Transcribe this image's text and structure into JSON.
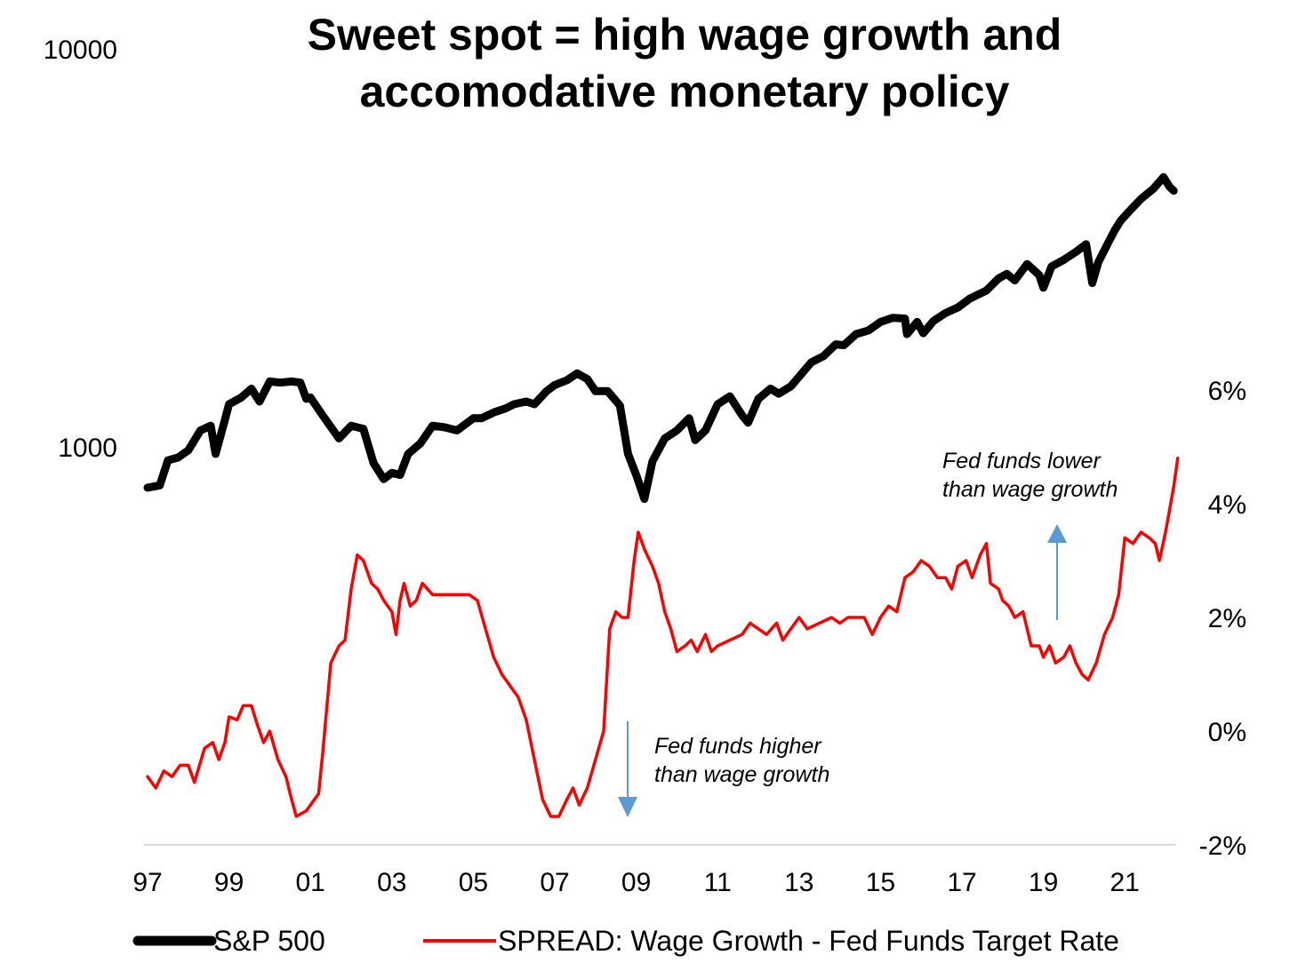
{
  "chart_data": {
    "type": "line",
    "title_lines": [
      "Sweet spot = high wage growth and",
      "accomodative monetary policy"
    ],
    "x_ticks": [
      "97",
      "99",
      "01",
      "03",
      "05",
      "07",
      "09",
      "11",
      "13",
      "15",
      "17",
      "19",
      "21"
    ],
    "xlim": [
      1997,
      2022.3
    ],
    "left_axis": {
      "scale": "log",
      "ticks": [
        "10000",
        "1000"
      ]
    },
    "right_axis": {
      "ticks": [
        "6%",
        "4%",
        "2%",
        "0%",
        "-2%"
      ],
      "ylim": [
        -2,
        6
      ]
    },
    "series": [
      {
        "name": "S&P 500",
        "axis": "left",
        "color": "#000000",
        "points": [
          [
            1997.0,
            790
          ],
          [
            1997.3,
            800
          ],
          [
            1997.5,
            925
          ],
          [
            1997.75,
            940
          ],
          [
            1998.0,
            980
          ],
          [
            1998.3,
            1100
          ],
          [
            1998.55,
            1130
          ],
          [
            1998.67,
            960
          ],
          [
            1998.9,
            1170
          ],
          [
            1999.0,
            1280
          ],
          [
            1999.3,
            1330
          ],
          [
            1999.55,
            1400
          ],
          [
            1999.75,
            1300
          ],
          [
            2000.0,
            1460
          ],
          [
            2000.25,
            1450
          ],
          [
            2000.55,
            1460
          ],
          [
            2000.75,
            1450
          ],
          [
            2000.9,
            1320
          ],
          [
            2001.0,
            1330
          ],
          [
            2001.3,
            1200
          ],
          [
            2001.7,
            1050
          ],
          [
            2002.0,
            1130
          ],
          [
            2002.3,
            1110
          ],
          [
            2002.55,
            910
          ],
          [
            2002.8,
            830
          ],
          [
            2003.0,
            860
          ],
          [
            2003.2,
            850
          ],
          [
            2003.4,
            960
          ],
          [
            2003.7,
            1020
          ],
          [
            2004.0,
            1130
          ],
          [
            2004.3,
            1120
          ],
          [
            2004.6,
            1100
          ],
          [
            2005.0,
            1180
          ],
          [
            2005.2,
            1180
          ],
          [
            2005.5,
            1220
          ],
          [
            2005.8,
            1250
          ],
          [
            2006.0,
            1280
          ],
          [
            2006.3,
            1300
          ],
          [
            2006.5,
            1280
          ],
          [
            2006.8,
            1380
          ],
          [
            2007.0,
            1430
          ],
          [
            2007.3,
            1470
          ],
          [
            2007.55,
            1530
          ],
          [
            2007.8,
            1480
          ],
          [
            2008.0,
            1380
          ],
          [
            2008.3,
            1380
          ],
          [
            2008.6,
            1270
          ],
          [
            2008.8,
            960
          ],
          [
            2009.0,
            850
          ],
          [
            2009.2,
            740
          ],
          [
            2009.4,
            920
          ],
          [
            2009.7,
            1050
          ],
          [
            2010.0,
            1100
          ],
          [
            2010.3,
            1180
          ],
          [
            2010.45,
            1040
          ],
          [
            2010.7,
            1100
          ],
          [
            2011.0,
            1280
          ],
          [
            2011.3,
            1340
          ],
          [
            2011.6,
            1200
          ],
          [
            2011.75,
            1150
          ],
          [
            2012.0,
            1320
          ],
          [
            2012.3,
            1400
          ],
          [
            2012.5,
            1360
          ],
          [
            2012.8,
            1420
          ],
          [
            2013.0,
            1500
          ],
          [
            2013.3,
            1630
          ],
          [
            2013.6,
            1690
          ],
          [
            2013.9,
            1810
          ],
          [
            2014.1,
            1800
          ],
          [
            2014.4,
            1920
          ],
          [
            2014.7,
            1960
          ],
          [
            2015.0,
            2060
          ],
          [
            2015.3,
            2110
          ],
          [
            2015.6,
            2100
          ],
          [
            2015.65,
            1920
          ],
          [
            2015.9,
            2060
          ],
          [
            2016.05,
            1930
          ],
          [
            2016.3,
            2070
          ],
          [
            2016.6,
            2170
          ],
          [
            2016.9,
            2240
          ],
          [
            2017.2,
            2360
          ],
          [
            2017.6,
            2470
          ],
          [
            2017.9,
            2650
          ],
          [
            2018.1,
            2720
          ],
          [
            2018.3,
            2620
          ],
          [
            2018.6,
            2880
          ],
          [
            2018.9,
            2700
          ],
          [
            2019.0,
            2510
          ],
          [
            2019.2,
            2840
          ],
          [
            2019.5,
            2950
          ],
          [
            2019.8,
            3090
          ],
          [
            2020.05,
            3230
          ],
          [
            2020.2,
            2580
          ],
          [
            2020.35,
            2910
          ],
          [
            2020.6,
            3270
          ],
          [
            2020.75,
            3500
          ],
          [
            2020.9,
            3700
          ],
          [
            2021.1,
            3900
          ],
          [
            2021.4,
            4200
          ],
          [
            2021.7,
            4450
          ],
          [
            2021.95,
            4760
          ],
          [
            2022.1,
            4500
          ],
          [
            2022.2,
            4400
          ]
        ]
      },
      {
        "name": "SPREAD: Wage Growth - Fed Funds Target Rate",
        "axis": "right",
        "color": "#ff0000",
        "points": [
          [
            1997.0,
            -0.8
          ],
          [
            1997.2,
            -1.0
          ],
          [
            1997.4,
            -0.7
          ],
          [
            1997.6,
            -0.8
          ],
          [
            1997.8,
            -0.6
          ],
          [
            1998.0,
            -0.6
          ],
          [
            1998.15,
            -0.9
          ],
          [
            1998.4,
            -0.3
          ],
          [
            1998.6,
            -0.2
          ],
          [
            1998.75,
            -0.5
          ],
          [
            1998.9,
            -0.2
          ],
          [
            1999.0,
            0.25
          ],
          [
            1999.2,
            0.2
          ],
          [
            1999.35,
            0.45
          ],
          [
            1999.55,
            0.45
          ],
          [
            1999.7,
            0.1
          ],
          [
            1999.85,
            -0.2
          ],
          [
            2000.0,
            0.0
          ],
          [
            2000.2,
            -0.5
          ],
          [
            2000.4,
            -0.8
          ],
          [
            2000.5,
            -1.1
          ],
          [
            2000.65,
            -1.5
          ],
          [
            2000.9,
            -1.4
          ],
          [
            2001.0,
            -1.3
          ],
          [
            2001.2,
            -1.1
          ],
          [
            2001.3,
            -0.4
          ],
          [
            2001.5,
            1.2
          ],
          [
            2001.7,
            1.5
          ],
          [
            2001.85,
            1.6
          ],
          [
            2002.0,
            2.5
          ],
          [
            2002.15,
            3.1
          ],
          [
            2002.3,
            3.0
          ],
          [
            2002.5,
            2.6
          ],
          [
            2002.65,
            2.5
          ],
          [
            2002.8,
            2.3
          ],
          [
            2003.0,
            2.1
          ],
          [
            2003.1,
            1.7
          ],
          [
            2003.2,
            2.3
          ],
          [
            2003.3,
            2.6
          ],
          [
            2003.45,
            2.2
          ],
          [
            2003.6,
            2.3
          ],
          [
            2003.75,
            2.6
          ],
          [
            2004.0,
            2.4
          ],
          [
            2004.3,
            2.4
          ],
          [
            2004.6,
            2.4
          ],
          [
            2004.9,
            2.4
          ],
          [
            2005.1,
            2.3
          ],
          [
            2005.3,
            1.8
          ],
          [
            2005.5,
            1.3
          ],
          [
            2005.7,
            1.0
          ],
          [
            2005.9,
            0.8
          ],
          [
            2006.1,
            0.6
          ],
          [
            2006.3,
            0.2
          ],
          [
            2006.5,
            -0.5
          ],
          [
            2006.7,
            -1.2
          ],
          [
            2006.9,
            -1.5
          ],
          [
            2007.1,
            -1.5
          ],
          [
            2007.3,
            -1.2
          ],
          [
            2007.45,
            -1.0
          ],
          [
            2007.6,
            -1.3
          ],
          [
            2007.8,
            -1.0
          ],
          [
            2008.0,
            -0.5
          ],
          [
            2008.2,
            0.0
          ],
          [
            2008.35,
            1.8
          ],
          [
            2008.5,
            2.1
          ],
          [
            2008.65,
            2.0
          ],
          [
            2008.8,
            2.0
          ],
          [
            2008.95,
            3.0
          ],
          [
            2009.05,
            3.5
          ],
          [
            2009.2,
            3.2
          ],
          [
            2009.4,
            2.9
          ],
          [
            2009.55,
            2.6
          ],
          [
            2009.7,
            2.1
          ],
          [
            2009.85,
            1.8
          ],
          [
            2010.0,
            1.4
          ],
          [
            2010.2,
            1.5
          ],
          [
            2010.35,
            1.6
          ],
          [
            2010.5,
            1.4
          ],
          [
            2010.7,
            1.7
          ],
          [
            2010.85,
            1.4
          ],
          [
            2011.0,
            1.5
          ],
          [
            2011.3,
            1.6
          ],
          [
            2011.6,
            1.7
          ],
          [
            2011.8,
            1.9
          ],
          [
            2012.0,
            1.8
          ],
          [
            2012.2,
            1.7
          ],
          [
            2012.45,
            1.9
          ],
          [
            2012.6,
            1.6
          ],
          [
            2012.8,
            1.8
          ],
          [
            2013.0,
            2.0
          ],
          [
            2013.2,
            1.8
          ],
          [
            2013.5,
            1.9
          ],
          [
            2013.8,
            2.0
          ],
          [
            2014.0,
            1.9
          ],
          [
            2014.2,
            2.0
          ],
          [
            2014.4,
            2.0
          ],
          [
            2014.6,
            2.0
          ],
          [
            2014.8,
            1.7
          ],
          [
            2015.0,
            2.0
          ],
          [
            2015.2,
            2.2
          ],
          [
            2015.4,
            2.1
          ],
          [
            2015.6,
            2.7
          ],
          [
            2015.8,
            2.8
          ],
          [
            2016.0,
            3.0
          ],
          [
            2016.2,
            2.9
          ],
          [
            2016.4,
            2.7
          ],
          [
            2016.6,
            2.7
          ],
          [
            2016.75,
            2.5
          ],
          [
            2016.9,
            2.9
          ],
          [
            2017.1,
            3.0
          ],
          [
            2017.25,
            2.7
          ],
          [
            2017.45,
            3.1
          ],
          [
            2017.6,
            3.3
          ],
          [
            2017.7,
            2.6
          ],
          [
            2017.9,
            2.5
          ],
          [
            2018.0,
            2.3
          ],
          [
            2018.15,
            2.2
          ],
          [
            2018.3,
            2.0
          ],
          [
            2018.5,
            2.1
          ],
          [
            2018.7,
            1.5
          ],
          [
            2018.9,
            1.5
          ],
          [
            2019.0,
            1.3
          ],
          [
            2019.15,
            1.5
          ],
          [
            2019.3,
            1.2
          ],
          [
            2019.5,
            1.3
          ],
          [
            2019.65,
            1.5
          ],
          [
            2019.8,
            1.2
          ],
          [
            2019.95,
            1.0
          ],
          [
            2020.1,
            0.9
          ],
          [
            2020.3,
            1.2
          ],
          [
            2020.5,
            1.7
          ],
          [
            2020.7,
            2.0
          ],
          [
            2020.85,
            2.4
          ],
          [
            2021.0,
            3.4
          ],
          [
            2021.2,
            3.3
          ],
          [
            2021.4,
            3.5
          ],
          [
            2021.6,
            3.4
          ],
          [
            2021.75,
            3.3
          ],
          [
            2021.85,
            3.0
          ],
          [
            2022.0,
            3.5
          ],
          [
            2022.1,
            3.9
          ],
          [
            2022.2,
            4.3
          ],
          [
            2022.3,
            4.8
          ]
        ]
      }
    ],
    "annotations": [
      {
        "lines": [
          "Fed funds higher",
          "than wage growth"
        ],
        "arrow": "down",
        "arrow_color": "#5b9bd5"
      },
      {
        "lines": [
          "Fed funds lower",
          "than wage growth"
        ],
        "arrow": "up",
        "arrow_color": "#5b9bd5"
      }
    ],
    "legend": {
      "position": "bottom",
      "entries": [
        "S&P 500",
        "SPREAD: Wage Growth - Fed Funds Target Rate"
      ]
    },
    "grid": false
  }
}
